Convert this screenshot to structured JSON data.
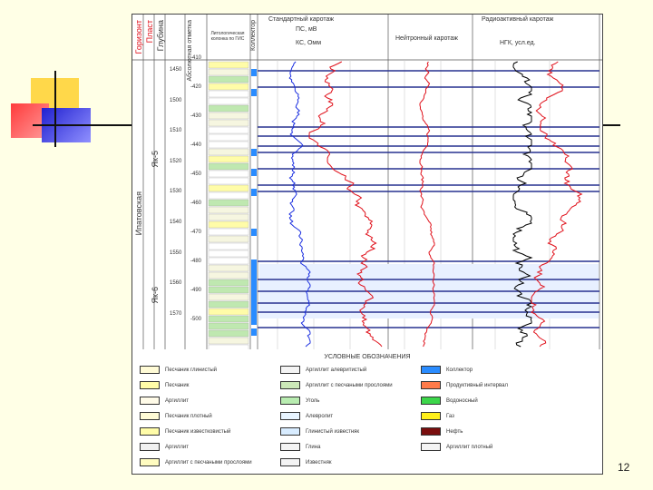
{
  "page_number": "12",
  "colors": {
    "background": "#ffffe6",
    "deco_yellow": "#ffd84a",
    "deco_red": "#ff3b3b",
    "deco_blue": "#3a3aff",
    "log_red": "#e0101a",
    "log_blue": "#1a2ee0",
    "log_black": "#000000",
    "marker_blue": "#27308f"
  },
  "columns": {
    "stratigraphy_title": "Горизонт",
    "stratigraphy_lithology": "Пласт",
    "depth_title": "Глубина",
    "marker_title": "Абсолютная отметка",
    "lithology_title": "Литологическая колонка по ГИС",
    "collector_title": "Коллектор"
  },
  "strat_units": {
    "formation": "Ипатовская",
    "upper_layer": "Як-5",
    "lower_layer": "Як-6"
  },
  "track1": {
    "title": "Стандартный каротаж",
    "curve1_label": "ПС, мВ",
    "curve2_label": "КС, Омм"
  },
  "track2": {
    "title": "",
    "curve1_label": "",
    "curve2_label": "Нейтронный каротаж"
  },
  "track3": {
    "title": "Радиоактивный каротаж",
    "curve1_label": "",
    "curve2_label": "НГК, усл.ед."
  },
  "depth_ticks": [
    "1450",
    "1500",
    "1510",
    "1520",
    "1530",
    "1540",
    "1550",
    "1560",
    "1570"
  ],
  "abs_ticks": [
    "-410",
    "-420",
    "-430",
    "-440",
    "-450",
    "-460",
    "-470",
    "-480",
    "-490",
    "-500"
  ],
  "legend": {
    "title": "УСЛОВНЫЕ ОБОЗНАЧЕНИЯ",
    "items": [
      {
        "label": "Песчаник глинистый",
        "color": "#fffbd6"
      },
      {
        "label": "Песчаник",
        "color": "#fffca8"
      },
      {
        "label": "Аргиллит",
        "color": "#fffbe8"
      },
      {
        "label": "Песчаник плотный",
        "color": "#fffbd6"
      },
      {
        "label": "Песчаник известковистый",
        "color": "#fffca8"
      },
      {
        "label": "Аргиллит",
        "color": "#f0f0f0"
      },
      {
        "label": "Аргиллит с песчаными прослоями",
        "color": "#fffcc0"
      },
      {
        "label": "Аргиллит алевритистый",
        "color": "#f4f4f4"
      },
      {
        "label": "Аргиллит с песчаными прослоями",
        "color": "#cce8b8"
      },
      {
        "label": "Уголь",
        "color": "#b8ecb0"
      },
      {
        "label": "Алевролит",
        "color": "#e8f4ff"
      },
      {
        "label": "Глинистый известняк",
        "color": "#d8ecff"
      },
      {
        "label": "Глина",
        "color": "#f4f4f4"
      },
      {
        "label": "Известняк",
        "color": "#f4f4f4"
      },
      {
        "label": "Коллектор",
        "color": "#2a8cff"
      },
      {
        "label": "Продуктивный интервал",
        "color": "#ff7b4a"
      },
      {
        "label": "Водоносный",
        "color": "#3cd64a"
      },
      {
        "label": "Газ",
        "color": "#ffef1a"
      },
      {
        "label": "Нефть",
        "color": "#7a0e0e"
      },
      {
        "label": "Аргиллит плотный",
        "color": "#f4f4f4"
      }
    ]
  }
}
